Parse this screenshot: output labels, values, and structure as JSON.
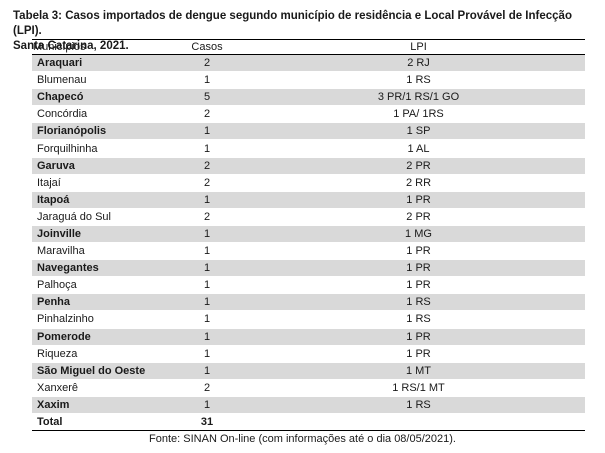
{
  "caption": {
    "line1": "Tabela 3: Casos importados de dengue segundo município de residência e Local Provável de Infecção (LPI).",
    "line2": "Santa Catarina, 2021."
  },
  "headers": {
    "municipio": "Municípios",
    "casos": "Casos",
    "lpi": "LPI"
  },
  "rows": [
    {
      "municipio": "Araquari",
      "casos": "2",
      "lpi": "2 RJ",
      "shaded": true,
      "bold": true
    },
    {
      "municipio": "Blumenau",
      "casos": "1",
      "lpi": "1 RS",
      "shaded": false,
      "bold": false
    },
    {
      "municipio": "Chapecó",
      "casos": "5",
      "lpi": "3 PR/1 RS/1 GO",
      "shaded": true,
      "bold": true
    },
    {
      "municipio": "Concórdia",
      "casos": "2",
      "lpi": "1 PA/ 1RS",
      "shaded": false,
      "bold": false
    },
    {
      "municipio": "Florianópolis",
      "casos": "1",
      "lpi": "1 SP",
      "shaded": true,
      "bold": true
    },
    {
      "municipio": "Forquilhinha",
      "casos": "1",
      "lpi": "1 AL",
      "shaded": false,
      "bold": false
    },
    {
      "municipio": "Garuva",
      "casos": "2",
      "lpi": "2 PR",
      "shaded": true,
      "bold": true
    },
    {
      "municipio": "Itajaí",
      "casos": "2",
      "lpi": "2 RR",
      "shaded": false,
      "bold": false
    },
    {
      "municipio": "Itapoá",
      "casos": "1",
      "lpi": "1 PR",
      "shaded": true,
      "bold": true
    },
    {
      "municipio": "Jaraguá do Sul",
      "casos": "2",
      "lpi": "2 PR",
      "shaded": false,
      "bold": false
    },
    {
      "municipio": "Joinville",
      "casos": "1",
      "lpi": "1 MG",
      "shaded": true,
      "bold": true
    },
    {
      "municipio": "Maravilha",
      "casos": "1",
      "lpi": "1 PR",
      "shaded": false,
      "bold": false
    },
    {
      "municipio": "Navegantes",
      "casos": "1",
      "lpi": "1 PR",
      "shaded": true,
      "bold": true
    },
    {
      "municipio": "Palhoça",
      "casos": "1",
      "lpi": "1 PR",
      "shaded": false,
      "bold": false
    },
    {
      "municipio": "Penha",
      "casos": "1",
      "lpi": "1 RS",
      "shaded": true,
      "bold": true
    },
    {
      "municipio": "Pinhalzinho",
      "casos": "1",
      "lpi": "1 RS",
      "shaded": false,
      "bold": false
    },
    {
      "municipio": "Pomerode",
      "casos": "1",
      "lpi": "1 PR",
      "shaded": true,
      "bold": true
    },
    {
      "municipio": "Riqueza",
      "casos": "1",
      "lpi": "1 PR",
      "shaded": false,
      "bold": false
    },
    {
      "municipio": "São Miguel do Oeste",
      "casos": "1",
      "lpi": "1 MT",
      "shaded": true,
      "bold": true
    },
    {
      "municipio": "Xanxerê",
      "casos": "2",
      "lpi": "1 RS/1 MT",
      "shaded": false,
      "bold": false
    },
    {
      "municipio": "Xaxim",
      "casos": "1",
      "lpi": "1 RS",
      "shaded": true,
      "bold": true
    }
  ],
  "total": {
    "label": "Total",
    "casos": "31",
    "lpi": ""
  },
  "source": "Fonte: SINAN On-line (com informações até o dia 08/05/2021)."
}
